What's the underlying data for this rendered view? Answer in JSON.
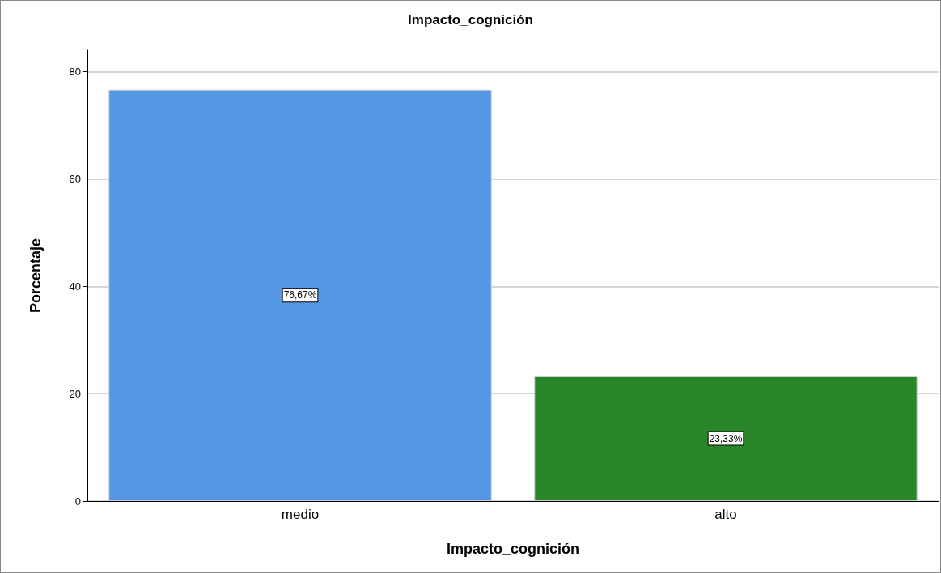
{
  "chart_data": {
    "type": "bar",
    "title": "Impacto_cognición",
    "xlabel": "Impacto_cognición",
    "ylabel": "Porcentaje",
    "categories": [
      "medio",
      "alto"
    ],
    "values": [
      76.67,
      23.33
    ],
    "colors": [
      "#5596e5",
      "#2a8729"
    ],
    "value_labels": [
      "76,67%",
      "23,33%"
    ],
    "ylim": [
      0,
      84
    ],
    "yticks": [
      0,
      20,
      40,
      60,
      80
    ],
    "grid": "y"
  }
}
